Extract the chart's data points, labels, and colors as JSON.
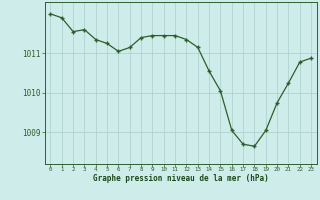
{
  "x": [
    0,
    1,
    2,
    3,
    4,
    5,
    6,
    7,
    8,
    9,
    10,
    11,
    12,
    13,
    14,
    15,
    16,
    17,
    18,
    19,
    20,
    21,
    22,
    23
  ],
  "y": [
    1012.0,
    1011.9,
    1011.55,
    1011.6,
    1011.35,
    1011.25,
    1011.05,
    1011.15,
    1011.4,
    1011.45,
    1011.45,
    1011.45,
    1011.35,
    1011.15,
    1010.55,
    1010.05,
    1009.05,
    1008.7,
    1008.65,
    1009.05,
    1009.75,
    1010.25,
    1010.78,
    1010.88
  ],
  "line_color": "#2d5f2d",
  "marker_color": "#2d5f2d",
  "bg_color": "#ceecea",
  "grid_color": "#aacfcd",
  "xlabel": "Graphe pression niveau de la mer (hPa)",
  "xlabel_color": "#1a4a1a",
  "tick_color": "#2d5f2d",
  "ylabel_ticks": [
    1009,
    1010,
    1011
  ],
  "ylim": [
    1008.2,
    1012.3
  ],
  "xlim": [
    -0.5,
    23.5
  ],
  "figsize": [
    3.2,
    2.0
  ],
  "dpi": 100
}
